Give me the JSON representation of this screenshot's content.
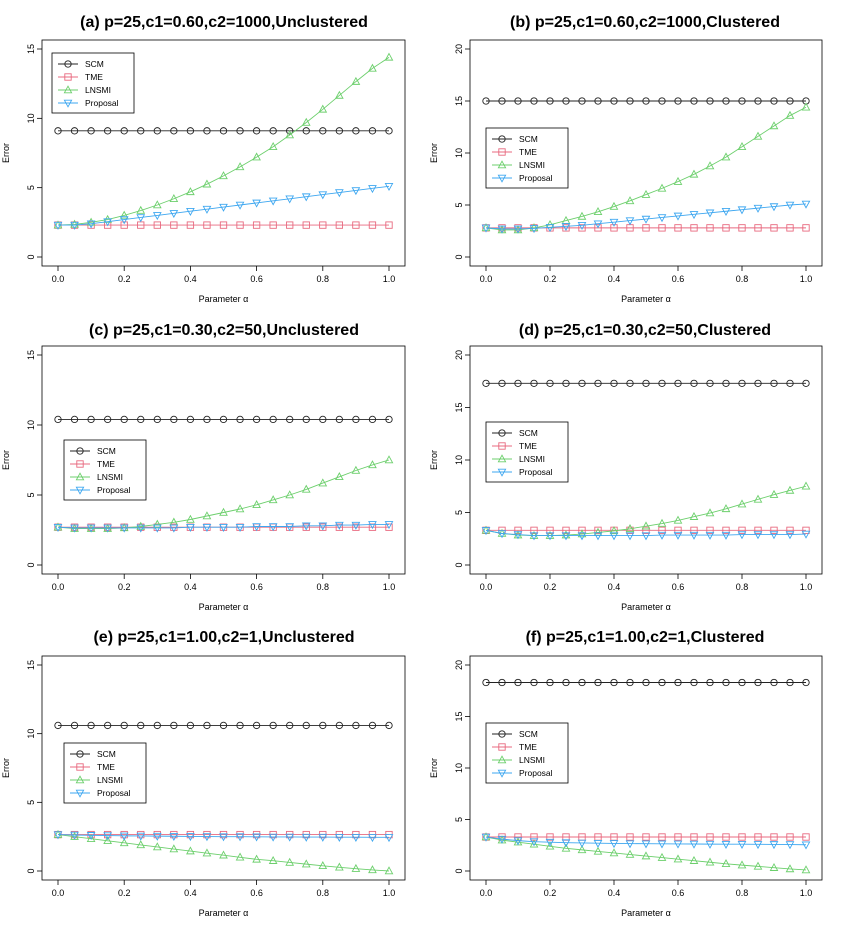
{
  "chart_data": [
    {
      "id": "a",
      "type": "line",
      "title": "(a) p=25,c1=0.60,c2=1000,Unclustered",
      "xlabel": "Parameter α",
      "ylabel": "Error",
      "xlim": [
        0,
        1
      ],
      "ylim": [
        0,
        15
      ],
      "xticks": [
        "0.0",
        "0.2",
        "0.4",
        "0.6",
        "0.8",
        "1.0"
      ],
      "yticks": [
        "0",
        "5",
        "10",
        "15"
      ],
      "legend_position": "top-left",
      "x": [
        0,
        0.05,
        0.1,
        0.15,
        0.2,
        0.25,
        0.3,
        0.35,
        0.4,
        0.45,
        0.5,
        0.55,
        0.6,
        0.65,
        0.7,
        0.75,
        0.8,
        0.85,
        0.9,
        0.95,
        1.0
      ],
      "series": [
        {
          "name": "SCM",
          "marker": "circle",
          "color": "#222222",
          "values": [
            9.1,
            9.1,
            9.1,
            9.1,
            9.1,
            9.1,
            9.1,
            9.1,
            9.1,
            9.1,
            9.1,
            9.1,
            9.1,
            9.1,
            9.1,
            9.1,
            9.1,
            9.1,
            9.1,
            9.1,
            9.1
          ]
        },
        {
          "name": "TME",
          "marker": "square",
          "color": "#e8697f",
          "values": [
            2.3,
            2.3,
            2.3,
            2.3,
            2.3,
            2.3,
            2.3,
            2.3,
            2.3,
            2.3,
            2.3,
            2.3,
            2.3,
            2.3,
            2.3,
            2.3,
            2.3,
            2.3,
            2.3,
            2.3,
            2.3
          ]
        },
        {
          "name": "LNSMI",
          "marker": "triangle-up",
          "color": "#6ccf6c",
          "values": [
            2.3,
            2.35,
            2.5,
            2.7,
            3.0,
            3.35,
            3.75,
            4.2,
            4.7,
            5.25,
            5.85,
            6.5,
            7.2,
            7.95,
            8.8,
            9.7,
            10.65,
            11.65,
            12.65,
            13.6,
            14.4
          ]
        },
        {
          "name": "Proposal",
          "marker": "triangle-down",
          "color": "#3ea7f0",
          "values": [
            2.3,
            2.3,
            2.4,
            2.55,
            2.7,
            2.85,
            3.0,
            3.15,
            3.3,
            3.45,
            3.6,
            3.75,
            3.9,
            4.05,
            4.2,
            4.35,
            4.5,
            4.65,
            4.8,
            4.95,
            5.1
          ]
        }
      ]
    },
    {
      "id": "b",
      "type": "line",
      "title": "(b) p=25,c1=0.60,c2=1000,Clustered",
      "xlabel": "Parameter α",
      "ylabel": "Error",
      "xlim": [
        0,
        1
      ],
      "ylim": [
        0,
        20
      ],
      "xticks": [
        "0.0",
        "0.2",
        "0.4",
        "0.6",
        "0.8",
        "1.0"
      ],
      "yticks": [
        "0",
        "5",
        "10",
        "15",
        "20"
      ],
      "legend_position": "middle-left",
      "x": [
        0,
        0.05,
        0.1,
        0.15,
        0.2,
        0.25,
        0.3,
        0.35,
        0.4,
        0.45,
        0.5,
        0.55,
        0.6,
        0.65,
        0.7,
        0.75,
        0.8,
        0.85,
        0.9,
        0.95,
        1.0
      ],
      "series": [
        {
          "name": "SCM",
          "marker": "circle",
          "color": "#222222",
          "values": [
            15.0,
            15.0,
            15.0,
            15.0,
            15.0,
            15.0,
            15.0,
            15.0,
            15.0,
            15.0,
            15.0,
            15.0,
            15.0,
            15.0,
            15.0,
            15.0,
            15.0,
            15.0,
            15.0,
            15.0,
            15.0
          ]
        },
        {
          "name": "TME",
          "marker": "square",
          "color": "#e8697f",
          "values": [
            2.8,
            2.8,
            2.8,
            2.8,
            2.8,
            2.8,
            2.8,
            2.8,
            2.8,
            2.8,
            2.8,
            2.8,
            2.8,
            2.8,
            2.8,
            2.8,
            2.8,
            2.8,
            2.8,
            2.8,
            2.8
          ]
        },
        {
          "name": "LNSMI",
          "marker": "triangle-up",
          "color": "#6ccf6c",
          "values": [
            2.8,
            2.6,
            2.6,
            2.8,
            3.1,
            3.5,
            3.9,
            4.35,
            4.85,
            5.4,
            6.0,
            6.6,
            7.25,
            7.95,
            8.75,
            9.6,
            10.6,
            11.6,
            12.6,
            13.6,
            14.4
          ]
        },
        {
          "name": "Proposal",
          "marker": "triangle-down",
          "color": "#3ea7f0",
          "values": [
            2.8,
            2.7,
            2.7,
            2.75,
            2.85,
            2.95,
            3.05,
            3.2,
            3.35,
            3.5,
            3.65,
            3.8,
            3.95,
            4.1,
            4.25,
            4.4,
            4.55,
            4.7,
            4.85,
            5.0,
            5.1
          ]
        }
      ]
    },
    {
      "id": "c",
      "type": "line",
      "title": "(c) p=25,c1=0.30,c2=50,Unclustered",
      "xlabel": "Parameter α",
      "ylabel": "Error",
      "xlim": [
        0,
        1
      ],
      "ylim": [
        0,
        15
      ],
      "xticks": [
        "0.0",
        "0.2",
        "0.4",
        "0.6",
        "0.8",
        "1.0"
      ],
      "yticks": [
        "0",
        "5",
        "10",
        "15"
      ],
      "legend_position": "middle-left",
      "x": [
        0,
        0.05,
        0.1,
        0.15,
        0.2,
        0.25,
        0.3,
        0.35,
        0.4,
        0.45,
        0.5,
        0.55,
        0.6,
        0.65,
        0.7,
        0.75,
        0.8,
        0.85,
        0.9,
        0.95,
        1.0
      ],
      "series": [
        {
          "name": "SCM",
          "marker": "circle",
          "color": "#222222",
          "values": [
            10.4,
            10.4,
            10.4,
            10.4,
            10.4,
            10.4,
            10.4,
            10.4,
            10.4,
            10.4,
            10.4,
            10.4,
            10.4,
            10.4,
            10.4,
            10.4,
            10.4,
            10.4,
            10.4,
            10.4,
            10.4
          ]
        },
        {
          "name": "TME",
          "marker": "square",
          "color": "#e8697f",
          "values": [
            2.7,
            2.7,
            2.7,
            2.7,
            2.7,
            2.7,
            2.7,
            2.7,
            2.7,
            2.7,
            2.7,
            2.7,
            2.7,
            2.7,
            2.7,
            2.7,
            2.7,
            2.7,
            2.7,
            2.7,
            2.7
          ]
        },
        {
          "name": "LNSMI",
          "marker": "triangle-up",
          "color": "#6ccf6c",
          "values": [
            2.7,
            2.6,
            2.6,
            2.6,
            2.65,
            2.75,
            2.9,
            3.05,
            3.25,
            3.5,
            3.75,
            4.0,
            4.3,
            4.65,
            5.0,
            5.4,
            5.85,
            6.3,
            6.75,
            7.15,
            7.5
          ]
        },
        {
          "name": "Proposal",
          "marker": "triangle-down",
          "color": "#3ea7f0",
          "values": [
            2.7,
            2.65,
            2.65,
            2.65,
            2.65,
            2.65,
            2.65,
            2.65,
            2.7,
            2.7,
            2.7,
            2.7,
            2.75,
            2.75,
            2.75,
            2.8,
            2.8,
            2.85,
            2.85,
            2.9,
            2.9
          ]
        }
      ]
    },
    {
      "id": "d",
      "type": "line",
      "title": "(d) p=25,c1=0.30,c2=50,Clustered",
      "xlabel": "Parameter α",
      "ylabel": "Error",
      "xlim": [
        0,
        1
      ],
      "ylim": [
        0,
        20
      ],
      "xticks": [
        "0.0",
        "0.2",
        "0.4",
        "0.6",
        "0.8",
        "1.0"
      ],
      "yticks": [
        "0",
        "5",
        "10",
        "15",
        "20"
      ],
      "legend_position": "middle-left",
      "x": [
        0,
        0.05,
        0.1,
        0.15,
        0.2,
        0.25,
        0.3,
        0.35,
        0.4,
        0.45,
        0.5,
        0.55,
        0.6,
        0.65,
        0.7,
        0.75,
        0.8,
        0.85,
        0.9,
        0.95,
        1.0
      ],
      "series": [
        {
          "name": "SCM",
          "marker": "circle",
          "color": "#222222",
          "values": [
            17.3,
            17.3,
            17.3,
            17.3,
            17.3,
            17.3,
            17.3,
            17.3,
            17.3,
            17.3,
            17.3,
            17.3,
            17.3,
            17.3,
            17.3,
            17.3,
            17.3,
            17.3,
            17.3,
            17.3,
            17.3
          ]
        },
        {
          "name": "TME",
          "marker": "square",
          "color": "#e8697f",
          "values": [
            3.3,
            3.3,
            3.3,
            3.3,
            3.3,
            3.3,
            3.3,
            3.3,
            3.3,
            3.3,
            3.3,
            3.3,
            3.3,
            3.3,
            3.3,
            3.3,
            3.3,
            3.3,
            3.3,
            3.3,
            3.3
          ]
        },
        {
          "name": "LNSMI",
          "marker": "triangle-up",
          "color": "#6ccf6c",
          "values": [
            3.3,
            3.0,
            2.85,
            2.8,
            2.8,
            2.85,
            2.95,
            3.1,
            3.25,
            3.45,
            3.7,
            3.95,
            4.25,
            4.6,
            4.95,
            5.35,
            5.8,
            6.25,
            6.7,
            7.1,
            7.5
          ]
        },
        {
          "name": "Proposal",
          "marker": "triangle-down",
          "color": "#3ea7f0",
          "values": [
            3.3,
            3.0,
            2.9,
            2.8,
            2.8,
            2.8,
            2.8,
            2.8,
            2.8,
            2.8,
            2.8,
            2.85,
            2.85,
            2.85,
            2.85,
            2.85,
            2.9,
            2.9,
            2.9,
            2.9,
            2.95
          ]
        }
      ]
    },
    {
      "id": "e",
      "type": "line",
      "title": "(e) p=25,c1=1.00,c2=1,Unclustered",
      "xlabel": "Parameter α",
      "ylabel": "Error",
      "xlim": [
        0,
        1
      ],
      "ylim": [
        0,
        15
      ],
      "xticks": [
        "0.0",
        "0.2",
        "0.4",
        "0.6",
        "0.8",
        "1.0"
      ],
      "yticks": [
        "0",
        "5",
        "10",
        "15"
      ],
      "legend_position": "middle-left",
      "x": [
        0,
        0.05,
        0.1,
        0.15,
        0.2,
        0.25,
        0.3,
        0.35,
        0.4,
        0.45,
        0.5,
        0.55,
        0.6,
        0.65,
        0.7,
        0.75,
        0.8,
        0.85,
        0.9,
        0.95,
        1.0
      ],
      "series": [
        {
          "name": "SCM",
          "marker": "circle",
          "color": "#222222",
          "values": [
            10.6,
            10.6,
            10.6,
            10.6,
            10.6,
            10.6,
            10.6,
            10.6,
            10.6,
            10.6,
            10.6,
            10.6,
            10.6,
            10.6,
            10.6,
            10.6,
            10.6,
            10.6,
            10.6,
            10.6,
            10.6
          ]
        },
        {
          "name": "TME",
          "marker": "square",
          "color": "#e8697f",
          "values": [
            2.65,
            2.65,
            2.65,
            2.65,
            2.65,
            2.65,
            2.65,
            2.65,
            2.65,
            2.65,
            2.65,
            2.65,
            2.65,
            2.65,
            2.65,
            2.65,
            2.65,
            2.65,
            2.65,
            2.65,
            2.65
          ]
        },
        {
          "name": "LNSMI",
          "marker": "triangle-up",
          "color": "#6ccf6c",
          "values": [
            2.65,
            2.5,
            2.35,
            2.2,
            2.05,
            1.9,
            1.75,
            1.6,
            1.45,
            1.3,
            1.15,
            1.0,
            0.85,
            0.75,
            0.62,
            0.5,
            0.38,
            0.27,
            0.17,
            0.08,
            0.0
          ]
        },
        {
          "name": "Proposal",
          "marker": "triangle-down",
          "color": "#3ea7f0",
          "values": [
            2.65,
            2.62,
            2.6,
            2.58,
            2.56,
            2.55,
            2.54,
            2.53,
            2.52,
            2.51,
            2.5,
            2.5,
            2.49,
            2.48,
            2.48,
            2.47,
            2.47,
            2.46,
            2.46,
            2.45,
            2.45
          ]
        }
      ]
    },
    {
      "id": "f",
      "type": "line",
      "title": "(f) p=25,c1=1.00,c2=1,Clustered",
      "xlabel": "Parameter α",
      "ylabel": "Error",
      "xlim": [
        0,
        1
      ],
      "ylim": [
        0,
        20
      ],
      "xticks": [
        "0.0",
        "0.2",
        "0.4",
        "0.6",
        "0.8",
        "1.0"
      ],
      "yticks": [
        "0",
        "5",
        "10",
        "15",
        "20"
      ],
      "legend_position": "middle-left",
      "x": [
        0,
        0.05,
        0.1,
        0.15,
        0.2,
        0.25,
        0.3,
        0.35,
        0.4,
        0.45,
        0.5,
        0.55,
        0.6,
        0.65,
        0.7,
        0.75,
        0.8,
        0.85,
        0.9,
        0.95,
        1.0
      ],
      "series": [
        {
          "name": "SCM",
          "marker": "circle",
          "color": "#222222",
          "values": [
            18.3,
            18.3,
            18.3,
            18.3,
            18.3,
            18.3,
            18.3,
            18.3,
            18.3,
            18.3,
            18.3,
            18.3,
            18.3,
            18.3,
            18.3,
            18.3,
            18.3,
            18.3,
            18.3,
            18.3,
            18.3
          ]
        },
        {
          "name": "TME",
          "marker": "square",
          "color": "#e8697f",
          "values": [
            3.3,
            3.3,
            3.3,
            3.3,
            3.3,
            3.3,
            3.3,
            3.3,
            3.3,
            3.3,
            3.3,
            3.3,
            3.3,
            3.3,
            3.3,
            3.3,
            3.3,
            3.3,
            3.3,
            3.3,
            3.3
          ]
        },
        {
          "name": "LNSMI",
          "marker": "triangle-up",
          "color": "#6ccf6c",
          "values": [
            3.3,
            3.0,
            2.8,
            2.6,
            2.4,
            2.2,
            2.05,
            1.9,
            1.75,
            1.6,
            1.45,
            1.3,
            1.15,
            1.0,
            0.85,
            0.7,
            0.57,
            0.45,
            0.32,
            0.2,
            0.1
          ]
        },
        {
          "name": "Proposal",
          "marker": "triangle-down",
          "color": "#3ea7f0",
          "values": [
            3.3,
            3.1,
            2.95,
            2.85,
            2.8,
            2.75,
            2.72,
            2.7,
            2.68,
            2.66,
            2.65,
            2.64,
            2.63,
            2.62,
            2.61,
            2.6,
            2.6,
            2.59,
            2.58,
            2.57,
            2.55
          ]
        }
      ]
    }
  ]
}
